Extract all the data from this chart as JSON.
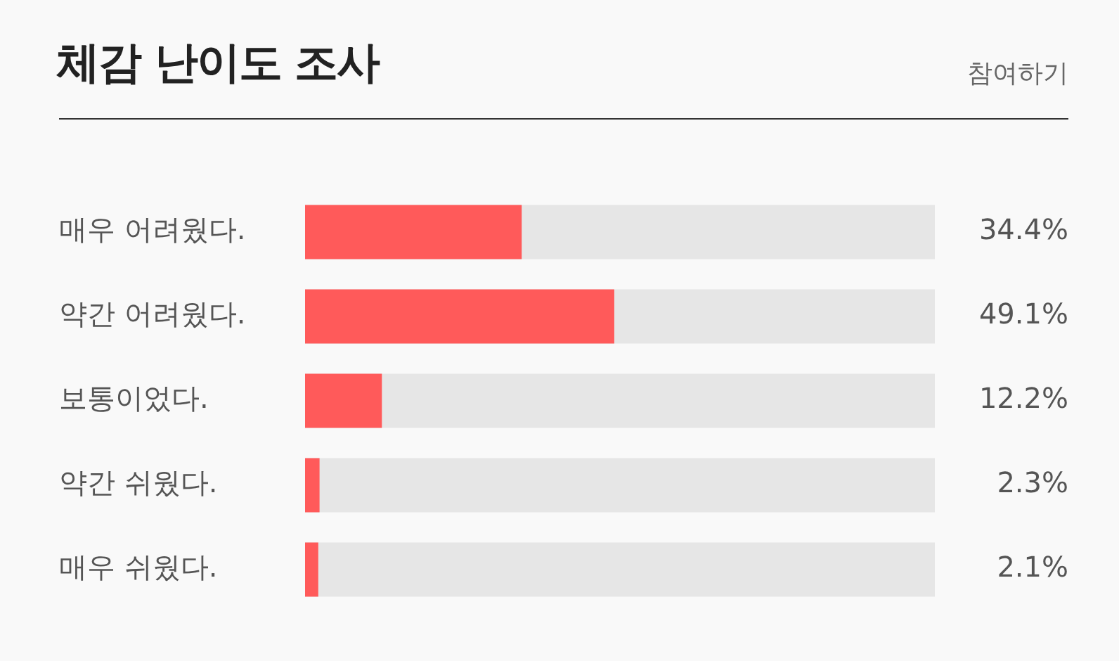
{
  "chart_data": {
    "type": "bar",
    "orientation": "horizontal",
    "title": "체감 난이도 조사",
    "annotations": [
      "참여하기"
    ],
    "categories": [
      "매우 어려웠다.",
      "약간 어려웠다.",
      "보통이었다.",
      "약간 쉬웠다.",
      "매우 쉬웠다."
    ],
    "values": [
      34.4,
      49.1,
      12.2,
      2.3,
      2.1
    ],
    "value_labels": [
      "34.4%",
      "49.1%",
      "12.2%",
      "2.3%",
      "2.1%"
    ],
    "color": "#ff5a5a",
    "xlim": [
      0,
      100
    ],
    "tick_labels": "y"
  }
}
